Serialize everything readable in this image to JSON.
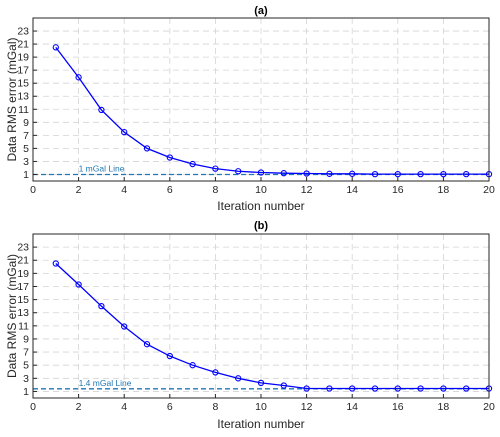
{
  "chart_data": [
    {
      "type": "line",
      "title": "(a)",
      "xlabel": "Iteration number",
      "ylabel": "Data RMS error (mGal)",
      "xlim": [
        0,
        20
      ],
      "ylim": [
        0,
        25
      ],
      "xticks": [
        0,
        2,
        4,
        6,
        8,
        10,
        12,
        14,
        16,
        18,
        20
      ],
      "yticks": [
        1,
        3,
        5,
        7,
        9,
        11,
        13,
        15,
        17,
        19,
        21,
        23
      ],
      "grid": true,
      "series": [
        {
          "x": [
            1,
            2,
            3,
            4,
            5,
            6,
            7,
            8,
            9,
            10,
            11,
            12,
            13,
            14,
            15,
            16,
            17,
            18,
            19,
            20
          ],
          "values": [
            20.5,
            15.9,
            10.9,
            7.5,
            5.0,
            3.6,
            2.6,
            1.9,
            1.5,
            1.3,
            1.2,
            1.15,
            1.1,
            1.1,
            1.05,
            1.05,
            1.05,
            1.05,
            1.05,
            1.05
          ],
          "color": "#0000ff"
        }
      ],
      "reference_line": {
        "y": 1.0,
        "label": "1 mGal Line",
        "color": "#1f77b4"
      }
    },
    {
      "type": "line",
      "title": "(b)",
      "xlabel": "Iteration number",
      "ylabel": "Data RMS error (mGal)",
      "xlim": [
        0,
        20
      ],
      "ylim": [
        0,
        25
      ],
      "xticks": [
        0,
        2,
        4,
        6,
        8,
        10,
        12,
        14,
        16,
        18,
        20
      ],
      "yticks": [
        1,
        3,
        5,
        7,
        9,
        11,
        13,
        15,
        17,
        19,
        21,
        23
      ],
      "grid": true,
      "series": [
        {
          "x": [
            1,
            2,
            3,
            4,
            5,
            6,
            7,
            8,
            9,
            10,
            11,
            12,
            13,
            14,
            15,
            16,
            17,
            18,
            19,
            20
          ],
          "values": [
            20.5,
            17.3,
            14.0,
            10.9,
            8.2,
            6.4,
            5.0,
            3.9,
            3.0,
            2.3,
            1.9,
            1.45,
            1.45,
            1.45,
            1.45,
            1.45,
            1.45,
            1.45,
            1.45,
            1.45
          ],
          "color": "#0000ff"
        }
      ],
      "reference_line": {
        "y": 1.4,
        "label": "1.4 mGal Line",
        "color": "#1f77b4"
      }
    }
  ]
}
